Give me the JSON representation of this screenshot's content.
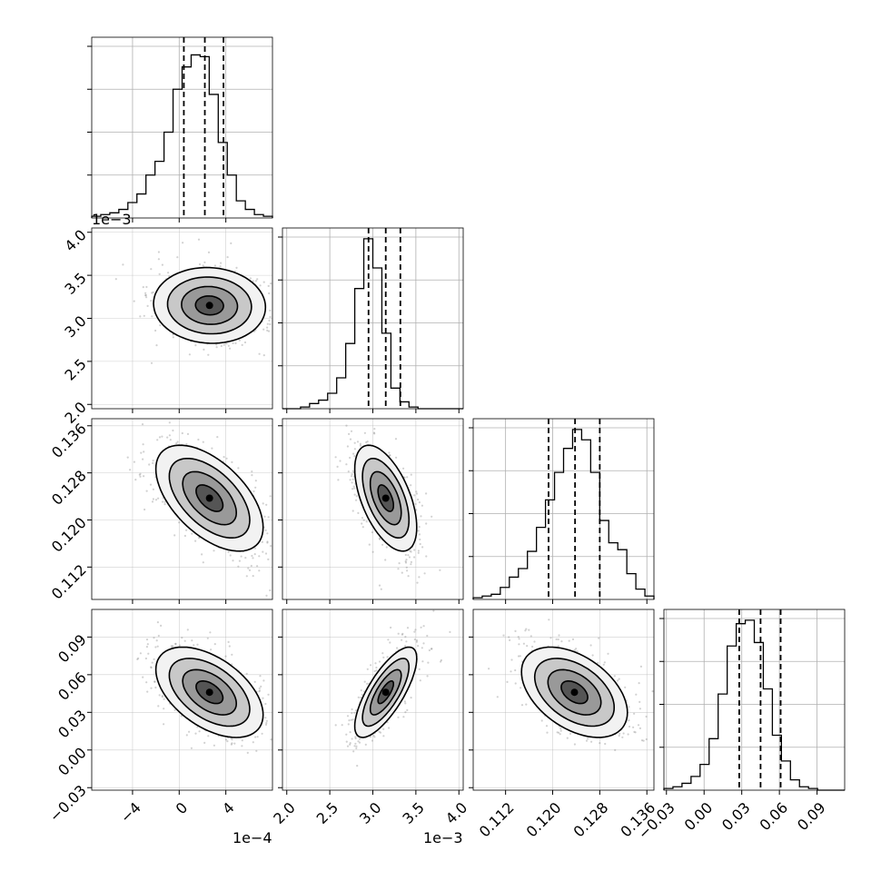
{
  "chart_data": {
    "type": "corner",
    "parameters": [
      {
        "index": 0,
        "range": [
          -7.5,
          8.0
        ],
        "median": 2.2,
        "q16": 0.4,
        "q84": 3.8,
        "hist_bins": [
          0.01,
          0.02,
          0.03,
          0.05,
          0.09,
          0.14,
          0.25,
          0.33,
          0.5,
          0.75,
          0.88,
          0.95,
          0.94,
          0.72,
          0.44,
          0.25,
          0.1,
          0.05,
          0.02,
          0.01
        ]
      },
      {
        "index": 1,
        "range": [
          1.95,
          4.05
        ],
        "median": 3.15,
        "q16": 2.95,
        "q84": 3.32,
        "hist_bins": [
          0.0,
          0.0,
          0.01,
          0.03,
          0.05,
          0.09,
          0.18,
          0.38,
          0.7,
          0.99,
          0.82,
          0.44,
          0.12,
          0.04,
          0.01,
          0.0,
          0.0,
          0.0,
          0.0,
          0.0
        ]
      },
      {
        "index": 2,
        "range": [
          0.1065,
          0.1372
        ],
        "median": 0.1238,
        "q16": 0.1193,
        "q84": 0.128,
        "hist_bins": [
          0.01,
          0.02,
          0.03,
          0.07,
          0.13,
          0.18,
          0.28,
          0.42,
          0.58,
          0.74,
          0.88,
          0.99,
          0.93,
          0.74,
          0.46,
          0.33,
          0.29,
          0.15,
          0.06,
          0.02
        ]
      },
      {
        "index": 3,
        "range": [
          -0.032,
          0.112
        ],
        "median": 0.045,
        "q16": 0.028,
        "q84": 0.061,
        "hist_bins": [
          0.01,
          0.02,
          0.04,
          0.08,
          0.15,
          0.3,
          0.56,
          0.84,
          0.97,
          0.99,
          0.86,
          0.59,
          0.32,
          0.17,
          0.06,
          0.02,
          0.01,
          0.0,
          0.0,
          0.0
        ]
      }
    ],
    "pairs": [
      {
        "x_param": 0,
        "y_param": 1,
        "center": [
          2.6,
          3.15
        ],
        "sx": 2.4,
        "sy": 0.22,
        "rho": -0.05
      },
      {
        "x_param": 0,
        "y_param": 2,
        "center": [
          2.6,
          0.1237
        ],
        "sx": 2.3,
        "sy": 0.0045,
        "rho": -0.55
      },
      {
        "x_param": 1,
        "y_param": 2,
        "center": [
          3.15,
          0.1237
        ],
        "sx": 0.18,
        "sy": 0.0045,
        "rho": -0.55
      },
      {
        "x_param": 0,
        "y_param": 3,
        "center": [
          2.6,
          0.046
        ],
        "sx": 2.3,
        "sy": 0.018,
        "rho": -0.5
      },
      {
        "x_param": 1,
        "y_param": 3,
        "center": [
          3.15,
          0.046
        ],
        "sx": 0.18,
        "sy": 0.018,
        "rho": 0.75
      },
      {
        "x_param": 2,
        "y_param": 3,
        "center": [
          0.1237,
          0.046
        ],
        "sx": 0.0045,
        "sy": 0.018,
        "rho": -0.45
      }
    ],
    "x_ticks": [
      [
        {
          "v": -4,
          "l": "−4"
        },
        {
          "v": 0,
          "l": "0"
        },
        {
          "v": 4,
          "l": "4"
        }
      ],
      [
        {
          "v": 2.0,
          "l": "2.0"
        },
        {
          "v": 2.5,
          "l": "2.5"
        },
        {
          "v": 3.0,
          "l": "3.0"
        },
        {
          "v": 3.5,
          "l": "3.5"
        },
        {
          "v": 4.0,
          "l": "4.0"
        }
      ],
      [
        {
          "v": 0.112,
          "l": "0.112"
        },
        {
          "v": 0.12,
          "l": "0.120"
        },
        {
          "v": 0.128,
          "l": "0.128"
        },
        {
          "v": 0.136,
          "l": "0.136"
        }
      ],
      [
        {
          "v": -0.03,
          "l": "−0.03"
        },
        {
          "v": 0.0,
          "l": "0.00"
        },
        {
          "v": 0.03,
          "l": "0.03"
        },
        {
          "v": 0.06,
          "l": "0.06"
        },
        {
          "v": 0.09,
          "l": "0.09"
        }
      ]
    ],
    "y_ticks": [
      null,
      [
        {
          "v": 2.0,
          "l": "2.0"
        },
        {
          "v": 2.5,
          "l": "2.5"
        },
        {
          "v": 3.0,
          "l": "3.0"
        },
        {
          "v": 3.5,
          "l": "3.5"
        },
        {
          "v": 4.0,
          "l": "4.0"
        }
      ],
      [
        {
          "v": 0.112,
          "l": "0.112"
        },
        {
          "v": 0.12,
          "l": "0.120"
        },
        {
          "v": 0.128,
          "l": "0.128"
        },
        {
          "v": 0.136,
          "l": "0.136"
        }
      ],
      [
        {
          "v": -0.03,
          "l": "−0.03"
        },
        {
          "v": 0.0,
          "l": "0.00"
        },
        {
          "v": 0.03,
          "l": "0.03"
        },
        {
          "v": 0.06,
          "l": "0.06"
        },
        {
          "v": 0.09,
          "l": "0.09"
        }
      ]
    ],
    "offset_labels": {
      "x0": "1e−4",
      "x1": "1e−3",
      "y1": "1e−3"
    },
    "colors": {
      "scatter": "#7a7a7a",
      "contour": "#000000",
      "grid": "#b0b0b0",
      "frame": "#000000",
      "quantile_line": "#000000"
    },
    "grid": true,
    "quantile_line_style": "dashed"
  }
}
